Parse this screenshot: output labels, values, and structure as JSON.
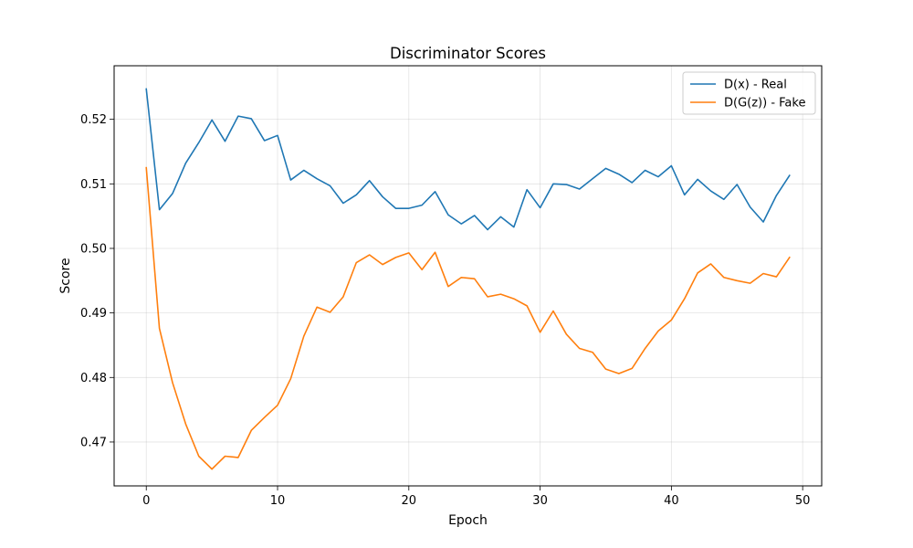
{
  "chart_data": {
    "type": "line",
    "title": "Discriminator Scores",
    "xlabel": "Epoch",
    "ylabel": "Score",
    "xlim": [
      -2.45,
      51.45
    ],
    "ylim": [
      0.4632,
      0.5283
    ],
    "xticks": [
      0,
      10,
      20,
      30,
      40,
      50
    ],
    "xtick_labels": [
      "0",
      "10",
      "20",
      "30",
      "40",
      "50"
    ],
    "yticks": [
      0.47,
      0.48,
      0.49,
      0.5,
      0.51,
      0.52
    ],
    "ytick_labels": [
      "0.47",
      "0.48",
      "0.49",
      "0.50",
      "0.51",
      "0.52"
    ],
    "grid": true,
    "legend_position": "top-right",
    "x": [
      0,
      1,
      2,
      3,
      4,
      5,
      6,
      7,
      8,
      9,
      10,
      11,
      12,
      13,
      14,
      15,
      16,
      17,
      18,
      19,
      20,
      21,
      22,
      23,
      24,
      25,
      26,
      27,
      28,
      29,
      30,
      31,
      32,
      33,
      34,
      35,
      36,
      37,
      38,
      39,
      40,
      41,
      42,
      43,
      44,
      45,
      46,
      47,
      48,
      49
    ],
    "series": [
      {
        "name": "D(x) - Real",
        "color": "#1f77b4",
        "values": [
          0.5247,
          0.506,
          0.5085,
          0.5132,
          0.5164,
          0.5199,
          0.5166,
          0.5205,
          0.5201,
          0.5167,
          0.5175,
          0.5106,
          0.5121,
          0.5108,
          0.5097,
          0.507,
          0.5083,
          0.5105,
          0.508,
          0.5062,
          0.5062,
          0.5067,
          0.5088,
          0.5052,
          0.5038,
          0.5051,
          0.5029,
          0.5049,
          0.5033,
          0.5091,
          0.5063,
          0.51,
          0.5099,
          0.5092,
          0.5108,
          0.5124,
          0.5115,
          0.5102,
          0.5121,
          0.5111,
          0.5128,
          0.5083,
          0.5107,
          0.5089,
          0.5076,
          0.5099,
          0.5064,
          0.5041,
          0.5082,
          0.5113
        ]
      },
      {
        "name": "D(G(z)) - Fake",
        "color": "#ff7f0e",
        "values": [
          0.5125,
          0.4876,
          0.4792,
          0.4728,
          0.4678,
          0.4658,
          0.4678,
          0.4676,
          0.4718,
          0.4738,
          0.4757,
          0.4798,
          0.4864,
          0.4909,
          0.4901,
          0.4925,
          0.4978,
          0.499,
          0.4975,
          0.4986,
          0.4993,
          0.4967,
          0.4994,
          0.4941,
          0.4955,
          0.4953,
          0.4925,
          0.4929,
          0.4922,
          0.4911,
          0.487,
          0.4903,
          0.4867,
          0.4845,
          0.4839,
          0.4813,
          0.4806,
          0.4814,
          0.4845,
          0.4872,
          0.4889,
          0.4922,
          0.4962,
          0.4976,
          0.4955,
          0.495,
          0.4946,
          0.4961,
          0.4956,
          0.4986
        ]
      }
    ]
  }
}
